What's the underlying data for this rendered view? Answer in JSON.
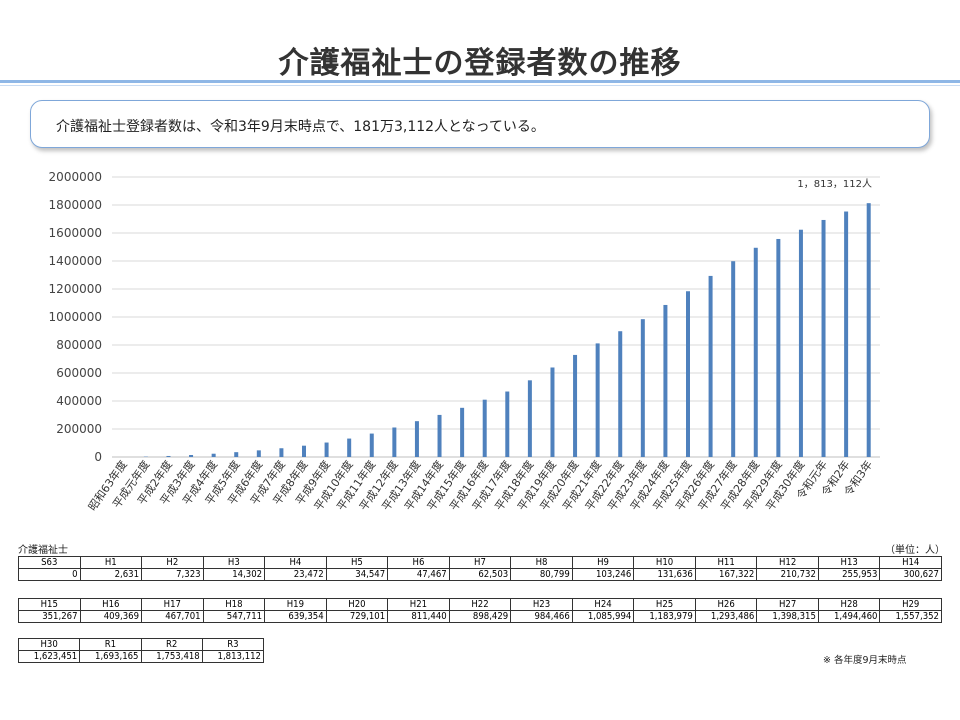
{
  "title": "介護福祉士の登録者数の推移",
  "summary": "介護福祉士登録者数は、令和3年9月末時点で、181万3,112人となっている。",
  "table": {
    "title": "介護福祉士",
    "unit": "（単位：人）",
    "note": "※ 各年度9月末時点",
    "rows": [
      {
        "headers": [
          "S63",
          "H1",
          "H2",
          "H3",
          "H4",
          "H5",
          "H6",
          "H7",
          "H8",
          "H9",
          "H10",
          "H11",
          "H12",
          "H13",
          "H14"
        ],
        "values": [
          "0",
          "2,631",
          "7,323",
          "14,302",
          "23,472",
          "34,547",
          "47,467",
          "62,503",
          "80,799",
          "103,246",
          "131,636",
          "167,322",
          "210,732",
          "255,953",
          "300,627"
        ]
      },
      {
        "headers": [
          "H15",
          "H16",
          "H17",
          "H18",
          "H19",
          "H20",
          "H21",
          "H22",
          "H23",
          "H24",
          "H25",
          "H26",
          "H27",
          "H28",
          "H29"
        ],
        "values": [
          "351,267",
          "409,369",
          "467,701",
          "547,711",
          "639,354",
          "729,101",
          "811,440",
          "898,429",
          "984,466",
          "1,085,994",
          "1,183,979",
          "1,293,486",
          "1,398,315",
          "1,494,460",
          "1,557,352"
        ]
      },
      {
        "headers": [
          "H30",
          "R1",
          "R2",
          "R3"
        ],
        "values": [
          "1,623,451",
          "1,693,165",
          "1,753,418",
          "1,813,112"
        ]
      }
    ]
  },
  "chart_data": {
    "type": "bar",
    "categories": [
      "昭和63年度",
      "平成元年度",
      "平成2年度",
      "平成3年度",
      "平成4年度",
      "平成5年度",
      "平成6年度",
      "平成7年度",
      "平成8年度",
      "平成9年度",
      "平成10年度",
      "平成11年度",
      "平成12年度",
      "平成13年度",
      "平成14年度",
      "平成15年度",
      "平成16年度",
      "平成17年度",
      "平成18年度",
      "平成19年度",
      "平成20年度",
      "平成21年度",
      "平成22年度",
      "平成23年度",
      "平成24年度",
      "平成25年度",
      "平成26年度",
      "平成27年度",
      "平成28年度",
      "平成29年度",
      "平成30年度",
      "令和元年",
      "令和2年",
      "令和3年"
    ],
    "values": [
      0,
      2631,
      7323,
      14302,
      23472,
      34547,
      47467,
      62503,
      80799,
      103246,
      131636,
      167322,
      210732,
      255953,
      300627,
      351267,
      409369,
      467701,
      547711,
      639354,
      729101,
      811440,
      898429,
      984466,
      1085994,
      1183979,
      1293486,
      1398315,
      1494460,
      1557352,
      1623451,
      1693165,
      1753418,
      1813112
    ],
    "ylim": [
      0,
      2000000
    ],
    "yticks": [
      "0",
      "200000",
      "400000",
      "600000",
      "800000",
      "1000000",
      "1200000",
      "1400000",
      "1600000",
      "1800000",
      "2000000"
    ],
    "data_label": "1，813，112人",
    "grid": true,
    "bar_color": "#4f81bd"
  }
}
